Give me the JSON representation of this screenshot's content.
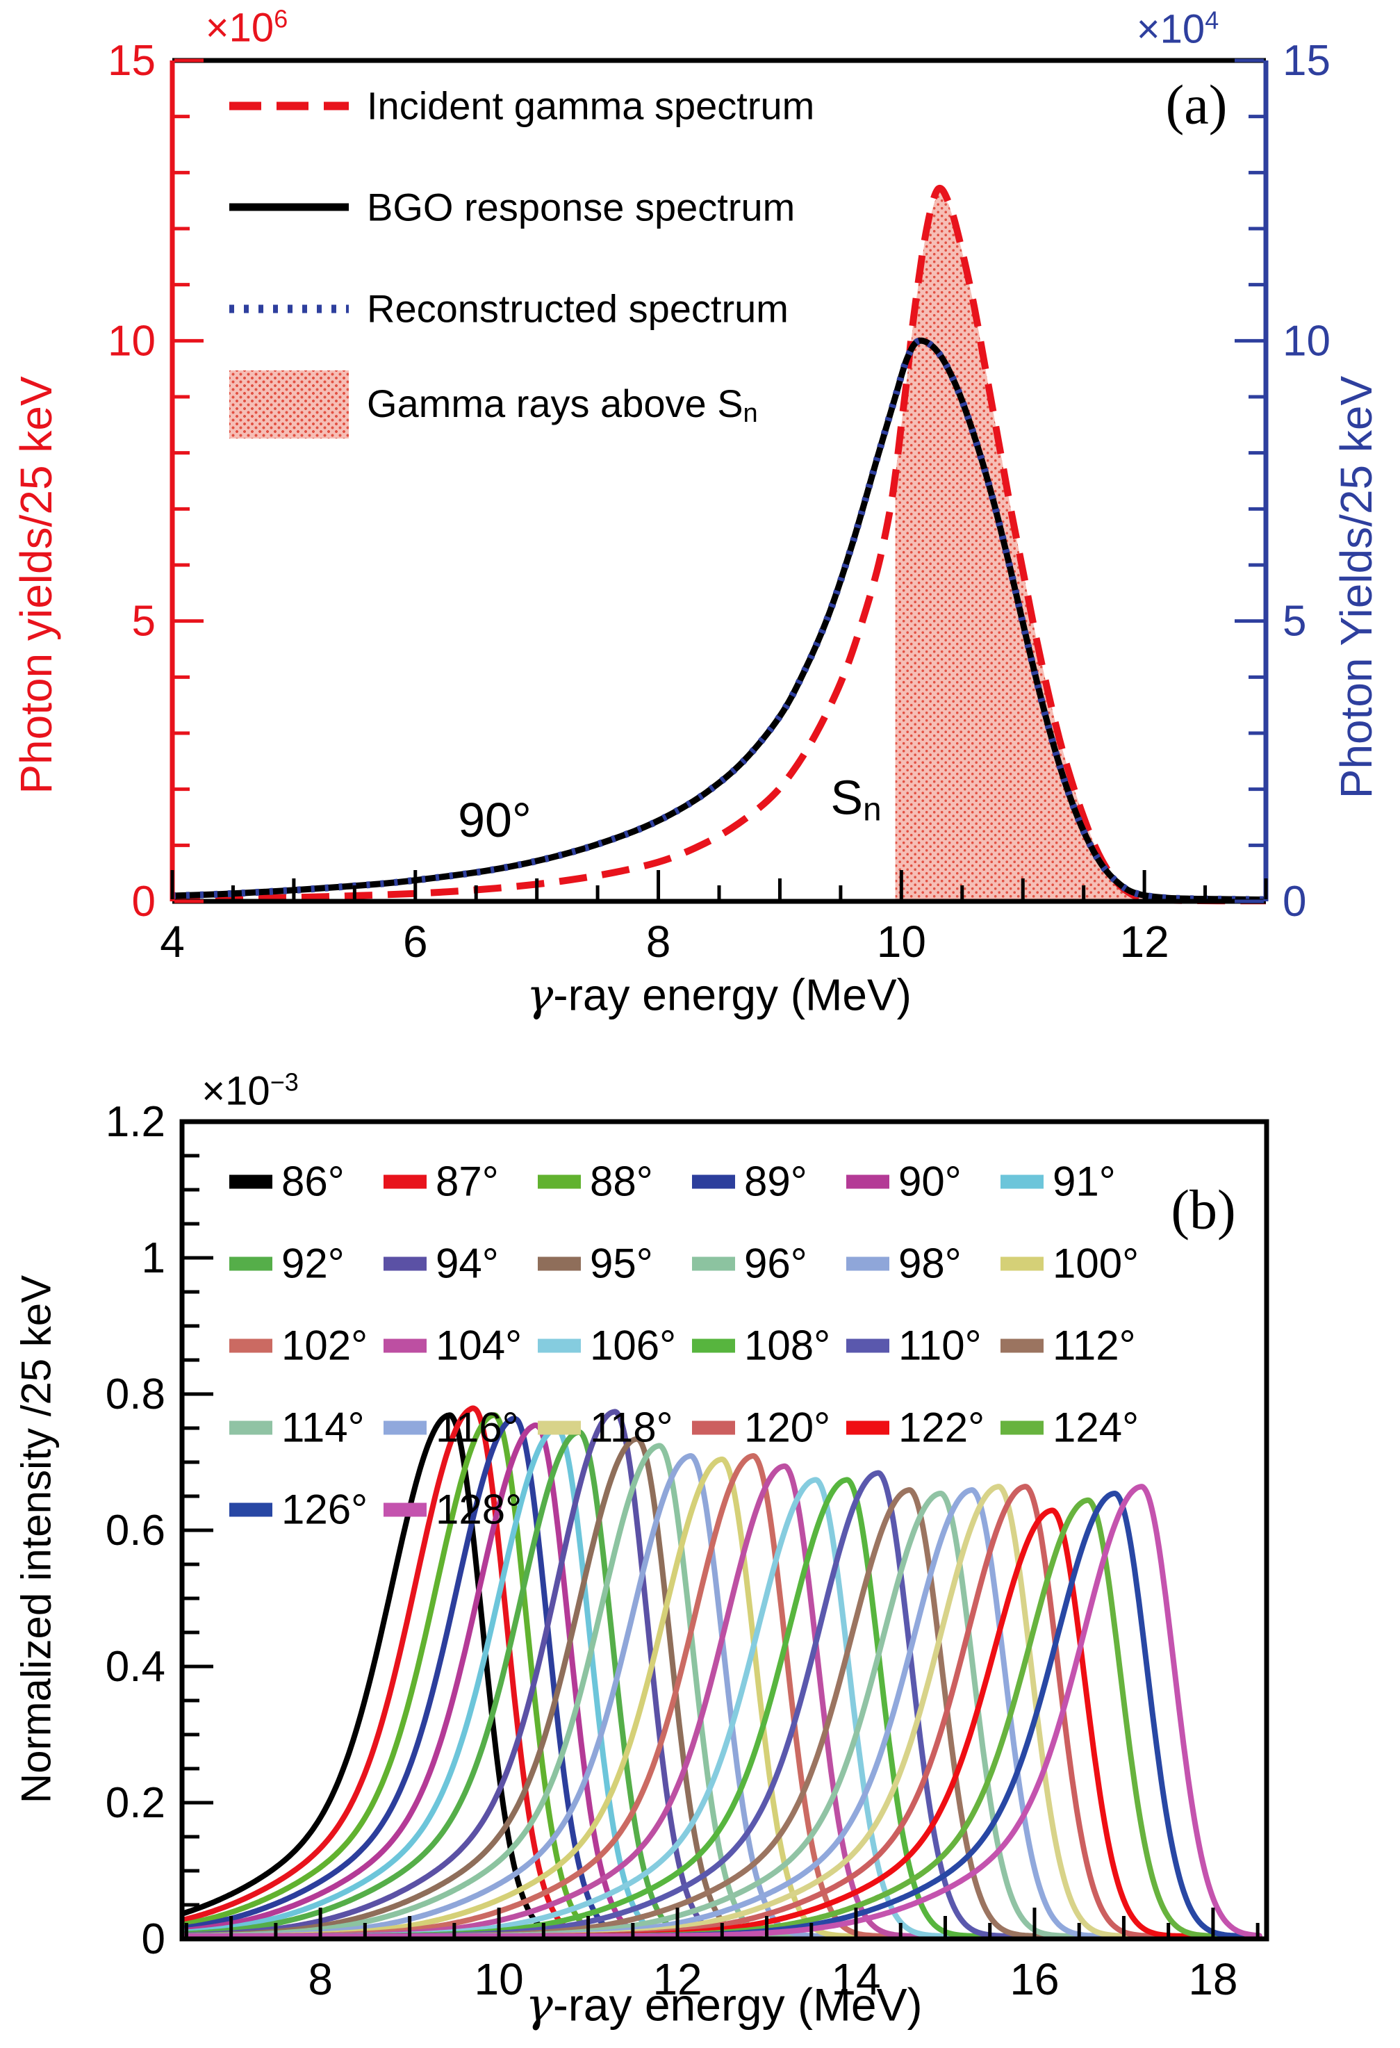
{
  "panel_a": {
    "tag": "(a)",
    "scale_left_base": "×10",
    "scale_left_exp": "6",
    "scale_right_base": "×10",
    "scale_right_exp": "4",
    "ylabel_left": "Photon yields/25 keV",
    "ylabel_right": "Photon Yields/25 keV",
    "xlabel_gamma": "γ",
    "xlabel_rest": "-ray energy (MeV)",
    "angle_annotation": "90°",
    "sn_main": "S",
    "sn_sub": "n",
    "axis_color_left": "#e8131c",
    "axis_color_right": "#2e3f9e",
    "legend": [
      {
        "label": "Incident gamma spectrum",
        "style": "dashed",
        "color": "#e8131c"
      },
      {
        "label": "BGO response spectrum",
        "style": "solid",
        "color": "#000000"
      },
      {
        "label": "Reconstructed spectrum",
        "style": "dotted",
        "color": "#2e3f9e"
      },
      {
        "label": "Gamma rays above S",
        "label_sub": "n",
        "style": "fill",
        "color": "#e25143"
      }
    ]
  },
  "panel_b": {
    "tag": "(b)",
    "scale_base": "×10",
    "scale_exp": "−3",
    "ylabel": "Normalized intensity /25 keV",
    "xlabel_gamma": "γ",
    "xlabel_rest": "-ray energy (MeV)"
  },
  "chart_data": [
    {
      "type": "line",
      "panel": "a",
      "xlabel": "γ-ray energy (MeV)",
      "ylabel_left": "Photon yields/25 keV (×10^6)",
      "ylabel_right": "Photon Yields/25 keV (×10^4)",
      "xlim": [
        4,
        13
      ],
      "ylim": [
        0,
        15
      ],
      "x_major_ticks": [
        4,
        6,
        8,
        10,
        12
      ],
      "y_major_ticks": [
        0,
        5,
        10,
        15
      ],
      "x_tick_labels": [
        "4",
        "6",
        "8",
        "10",
        "12"
      ],
      "y_tick_labels": [
        "0",
        "5",
        "10",
        "15"
      ],
      "grid": false,
      "legend_position": "top-left",
      "annotations": [
        {
          "text": "90°",
          "x": 6.65,
          "y": 1.45
        },
        {
          "text": "Sn",
          "x": 9.63,
          "y": 1.8
        }
      ],
      "sn_energy_mev": 9.95,
      "incident_peak": {
        "x": 10.3,
        "y": 12.7
      },
      "response_peak": {
        "x": 10.15,
        "y": 10.0
      },
      "incident_points": [
        [
          4,
          0.03
        ],
        [
          4.5,
          0.05
        ],
        [
          5,
          0.07
        ],
        [
          5.5,
          0.1
        ],
        [
          6,
          0.14
        ],
        [
          6.4,
          0.19
        ],
        [
          6.8,
          0.26
        ],
        [
          7.2,
          0.36
        ],
        [
          7.6,
          0.5
        ],
        [
          8,
          0.7
        ],
        [
          8.3,
          0.95
        ],
        [
          8.6,
          1.3
        ],
        [
          8.9,
          1.8
        ],
        [
          9.1,
          2.3
        ],
        [
          9.3,
          3.0
        ],
        [
          9.5,
          3.9
        ],
        [
          9.65,
          4.8
        ],
        [
          9.8,
          5.9
        ],
        [
          9.9,
          6.9
        ],
        [
          9.95,
          7.6
        ],
        [
          10,
          8.5
        ],
        [
          10.05,
          9.4
        ],
        [
          10.1,
          10.4
        ],
        [
          10.2,
          11.9
        ],
        [
          10.3,
          12.7
        ],
        [
          10.4,
          12.4
        ],
        [
          10.5,
          11.6
        ],
        [
          10.6,
          10.6
        ],
        [
          10.7,
          9.4
        ],
        [
          10.8,
          8.2
        ],
        [
          10.9,
          7.0
        ],
        [
          11,
          5.9
        ],
        [
          11.1,
          4.8
        ],
        [
          11.2,
          3.8
        ],
        [
          11.3,
          2.9
        ],
        [
          11.4,
          2.15
        ],
        [
          11.5,
          1.5
        ],
        [
          11.6,
          0.95
        ],
        [
          11.7,
          0.55
        ],
        [
          11.8,
          0.28
        ],
        [
          11.9,
          0.12
        ],
        [
          12,
          0.05
        ],
        [
          12.2,
          0.02
        ],
        [
          12.6,
          0.01
        ],
        [
          13,
          0.01
        ]
      ],
      "response_points": [
        [
          4,
          0.1
        ],
        [
          4.3,
          0.12
        ],
        [
          4.6,
          0.15
        ],
        [
          5,
          0.2
        ],
        [
          5.4,
          0.26
        ],
        [
          5.8,
          0.33
        ],
        [
          6.2,
          0.43
        ],
        [
          6.6,
          0.55
        ],
        [
          7,
          0.72
        ],
        [
          7.4,
          0.95
        ],
        [
          7.8,
          1.25
        ],
        [
          8.1,
          1.55
        ],
        [
          8.4,
          1.95
        ],
        [
          8.7,
          2.5
        ],
        [
          9,
          3.3
        ],
        [
          9.2,
          4.1
        ],
        [
          9.4,
          5.1
        ],
        [
          9.6,
          6.4
        ],
        [
          9.8,
          7.9
        ],
        [
          9.95,
          9.0
        ],
        [
          10.05,
          9.7
        ],
        [
          10.15,
          10.0
        ],
        [
          10.3,
          9.8
        ],
        [
          10.45,
          9.2
        ],
        [
          10.6,
          8.3
        ],
        [
          10.75,
          7.2
        ],
        [
          10.9,
          5.9
        ],
        [
          11.05,
          4.5
        ],
        [
          11.2,
          3.2
        ],
        [
          11.35,
          2.1
        ],
        [
          11.5,
          1.25
        ],
        [
          11.65,
          0.65
        ],
        [
          11.8,
          0.3
        ],
        [
          11.95,
          0.13
        ],
        [
          12.2,
          0.06
        ],
        [
          12.6,
          0.04
        ],
        [
          13,
          0.03
        ]
      ],
      "series": [
        {
          "name": "Incident gamma spectrum",
          "axis": "left",
          "style": "dashed",
          "color": "#e8131c",
          "points_key": "incident_points"
        },
        {
          "name": "BGO response spectrum",
          "axis": "right",
          "style": "solid",
          "color": "#000000",
          "points_key": "response_points"
        },
        {
          "name": "Reconstructed spectrum",
          "axis": "right",
          "style": "dotted",
          "color": "#2e3f9e",
          "points_key": "response_points"
        },
        {
          "name": "Gamma rays above Sn",
          "axis": "left",
          "style": "fill",
          "color": "#e25143",
          "region": "under incident curve for E >= 9.95 MeV"
        }
      ]
    },
    {
      "type": "line",
      "panel": "b",
      "xlabel": "γ-ray energy (MeV)",
      "ylabel": "Normalized intensity /25 keV (×10^-3)",
      "xlim": [
        6.45,
        18.6
      ],
      "ylim": [
        0,
        1.2
      ],
      "x_major_ticks": [
        8,
        10,
        12,
        14,
        16,
        18
      ],
      "y_major_ticks": [
        0,
        0.2,
        0.4,
        0.6,
        0.8,
        1,
        1.2
      ],
      "x_tick_labels": [
        "8",
        "10",
        "12",
        "14",
        "16",
        "18"
      ],
      "y_tick_labels": [
        "0",
        "0.2",
        "0.4",
        "0.6",
        "0.8",
        "1",
        "1.2"
      ],
      "grid": false,
      "legend_position": "top",
      "intensity_units": "1e-3",
      "series": [
        {
          "name": "86°",
          "color": "#000000",
          "peak_mev": 9.45,
          "peak_intensity": 0.765
        },
        {
          "name": "87°",
          "color": "#e8131c",
          "peak_mev": 9.72,
          "peak_intensity": 0.775
        },
        {
          "name": "88°",
          "color": "#61b22f",
          "peak_mev": 9.95,
          "peak_intensity": 0.765
        },
        {
          "name": "89°",
          "color": "#2c3e9c",
          "peak_mev": 10.18,
          "peak_intensity": 0.76
        },
        {
          "name": "90°",
          "color": "#b43a96",
          "peak_mev": 10.42,
          "peak_intensity": 0.75
        },
        {
          "name": "91°",
          "color": "#6cc5da",
          "peak_mev": 10.65,
          "peak_intensity": 0.745
        },
        {
          "name": "92°",
          "color": "#55ae49",
          "peak_mev": 10.9,
          "peak_intensity": 0.74
        },
        {
          "name": "94°",
          "color": "#5b51a5",
          "peak_mev": 11.3,
          "peak_intensity": 0.77
        },
        {
          "name": "95°",
          "color": "#8f6e5a",
          "peak_mev": 11.55,
          "peak_intensity": 0.73
        },
        {
          "name": "96°",
          "color": "#8cc3a0",
          "peak_mev": 11.8,
          "peak_intensity": 0.72
        },
        {
          "name": "98°",
          "color": "#8fa6d9",
          "peak_mev": 12.15,
          "peak_intensity": 0.705
        },
        {
          "name": "100°",
          "color": "#d5d077",
          "peak_mev": 12.5,
          "peak_intensity": 0.7
        },
        {
          "name": "102°",
          "color": "#cb6a62",
          "peak_mev": 12.85,
          "peak_intensity": 0.705
        },
        {
          "name": "104°",
          "color": "#bd4fa2",
          "peak_mev": 13.2,
          "peak_intensity": 0.69
        },
        {
          "name": "106°",
          "color": "#85ccdf",
          "peak_mev": 13.55,
          "peak_intensity": 0.67
        },
        {
          "name": "108°",
          "color": "#57b53e",
          "peak_mev": 13.9,
          "peak_intensity": 0.67
        },
        {
          "name": "110°",
          "color": "#5a58ad",
          "peak_mev": 14.25,
          "peak_intensity": 0.68
        },
        {
          "name": "112°",
          "color": "#9b7460",
          "peak_mev": 14.6,
          "peak_intensity": 0.655
        },
        {
          "name": "114°",
          "color": "#90c3a4",
          "peak_mev": 14.95,
          "peak_intensity": 0.65
        },
        {
          "name": "116°",
          "color": "#90a8dc",
          "peak_mev": 15.3,
          "peak_intensity": 0.655
        },
        {
          "name": "118°",
          "color": "#d8d389",
          "peak_mev": 15.6,
          "peak_intensity": 0.66
        },
        {
          "name": "120°",
          "color": "#cc5f5f",
          "peak_mev": 15.9,
          "peak_intensity": 0.66
        },
        {
          "name": "122°",
          "color": "#ef0e13",
          "peak_mev": 16.2,
          "peak_intensity": 0.625
        },
        {
          "name": "124°",
          "color": "#67b33e",
          "peak_mev": 16.6,
          "peak_intensity": 0.64
        },
        {
          "name": "126°",
          "color": "#2847a4",
          "peak_mev": 16.9,
          "peak_intensity": 0.65
        },
        {
          "name": "128°",
          "color": "#c453ae",
          "peak_mev": 17.2,
          "peak_intensity": 0.66
        }
      ]
    }
  ]
}
